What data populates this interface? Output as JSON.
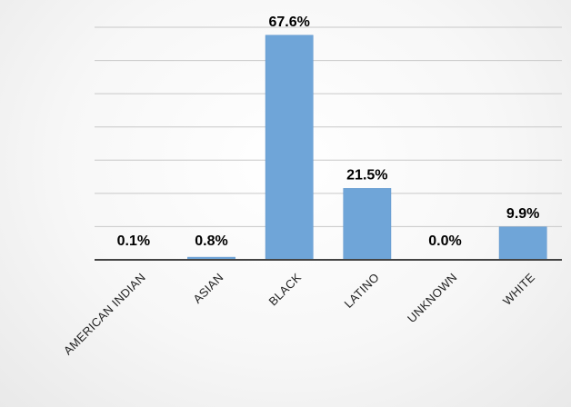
{
  "colors": {
    "bar": "#6fa5d8",
    "grid": "#c8c8c8",
    "axis": "#444444"
  },
  "chart_data": {
    "type": "bar",
    "categories": [
      "AMERICAN INDIAN",
      "ASIAN",
      "BLACK",
      "LATINO",
      "UNKNOWN",
      "WHITE"
    ],
    "values": [
      0.1,
      0.8,
      67.6,
      21.5,
      0.0,
      9.9
    ],
    "data_labels": [
      "0.1%",
      "0.8%",
      "67.6%",
      "21.5%",
      "0.0%",
      "9.9%"
    ],
    "ylim": [
      0,
      70
    ],
    "grid": true,
    "legend": "none"
  }
}
